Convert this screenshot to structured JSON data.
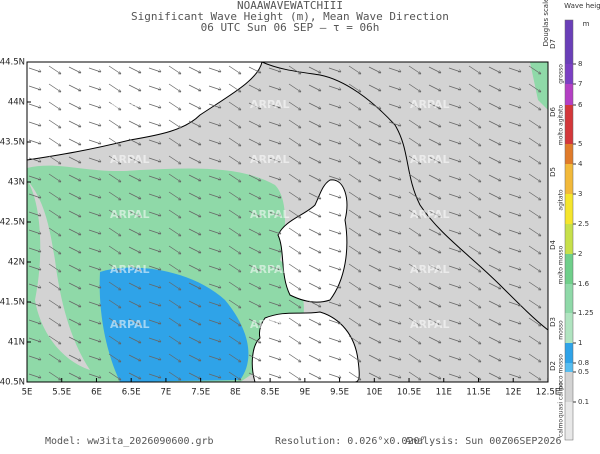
{
  "header": {
    "title": "NOAAWAVEWATCHIII",
    "subtitle": "Significant Wave Height (m), Mean Wave Direction",
    "time": "06 UTC Sun 06 SEP  –  τ = 06h"
  },
  "map": {
    "lat_labels": [
      "44.5N",
      "44N",
      "43.5N",
      "43N",
      "42.5N",
      "42N",
      "41.5N",
      "41N",
      "40.5N"
    ],
    "lon_labels": [
      "5E",
      "5.5E",
      "6E",
      "6.5E",
      "7E",
      "7.5E",
      "8E",
      "8.5E",
      "9E",
      "9.5E",
      "10E",
      "10.5E",
      "11E",
      "11.5E",
      "12E",
      "12.5E"
    ],
    "watermark": "ARPAL"
  },
  "legend": {
    "douglas_title": "Douglas scale",
    "height_title": "Wave height",
    "unit": "m",
    "height_labels": [
      "8",
      "7",
      "6",
      "5",
      "4",
      "3",
      "2.5",
      "2",
      "1.6",
      "1.25",
      "1",
      "0.8",
      "0.5",
      "0.1"
    ],
    "douglas_levels": [
      "D7",
      "D6",
      "D5",
      "D4",
      "D3",
      "D2"
    ],
    "sea_states": [
      "grosso",
      "molto agitato",
      "agitato",
      "molto mosso",
      "mosso",
      "poco mosso",
      "quasi calmo",
      "calmo"
    ]
  },
  "footer": {
    "model": "Model: ww3ita_2026090600.grb",
    "resolution": "Resolution: 0.026°x0.020°",
    "analysis": "Analysis: Sun 00Z06SEP2026"
  }
}
